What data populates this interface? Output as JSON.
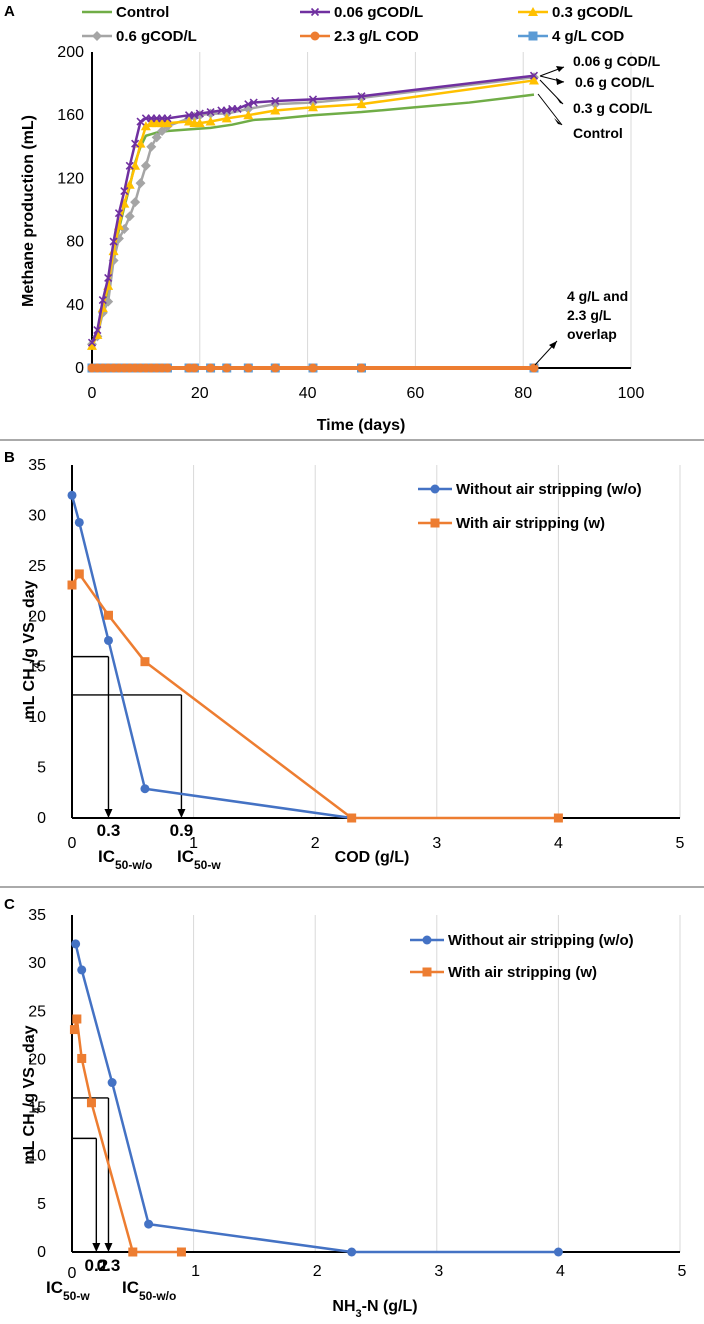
{
  "chart_data": [
    {
      "panel": "A",
      "type": "line",
      "xlabel": "Time (days)",
      "ylabel": "Methane production (mL)",
      "xlim": [
        0,
        100
      ],
      "ylim": [
        0,
        200
      ],
      "xticks": [
        0,
        20,
        40,
        60,
        80,
        100
      ],
      "yticks": [
        0,
        40,
        80,
        120,
        160,
        200
      ],
      "series": [
        {
          "name": "Control",
          "color": "#70ad47",
          "marker": "none",
          "x": [
            0,
            1,
            2,
            3,
            4,
            5,
            6,
            7,
            8,
            9,
            10,
            11,
            12,
            14,
            18,
            22,
            26,
            30,
            35,
            41,
            50,
            60,
            70,
            82
          ],
          "y": [
            15,
            22,
            37,
            50,
            68,
            88,
            102,
            115,
            130,
            140,
            147,
            148,
            149,
            150,
            151,
            152,
            154,
            157,
            158,
            160,
            162,
            165,
            168,
            173
          ]
        },
        {
          "name": "0.06 gCOD/L",
          "color": "#7030a0",
          "marker": "x",
          "x": [
            0,
            1,
            2,
            3,
            4,
            5,
            6,
            7,
            8,
            9,
            10,
            11,
            12,
            13,
            14,
            18,
            19,
            20,
            22,
            24,
            25,
            26,
            27,
            29,
            30,
            34,
            41,
            50,
            82
          ],
          "y": [
            16,
            24,
            43,
            57,
            80,
            98,
            112,
            128,
            142,
            156,
            158,
            158,
            158,
            158,
            158,
            160,
            160,
            161,
            162,
            163,
            163,
            164,
            164,
            167,
            168,
            169,
            170,
            172,
            185
          ]
        },
        {
          "name": "0.3 gCOD/L",
          "color": "#ffc000",
          "marker": "triangle",
          "x": [
            0,
            1,
            2,
            3,
            4,
            5,
            6,
            7,
            8,
            9,
            10,
            11,
            12,
            13,
            14,
            18,
            19,
            20,
            22,
            25,
            29,
            34,
            41,
            50,
            82
          ],
          "y": [
            14,
            21,
            38,
            52,
            74,
            90,
            104,
            116,
            128,
            142,
            153,
            155,
            155,
            155,
            155,
            156,
            155,
            155,
            156,
            158,
            160,
            163,
            165,
            167,
            182
          ]
        },
        {
          "name": "0.6 gCOD/L",
          "color": "#a5a5a5",
          "marker": "diamond",
          "x": [
            0,
            1,
            2,
            3,
            4,
            5,
            6,
            7,
            8,
            9,
            10,
            11,
            12,
            13,
            14,
            18,
            19,
            20,
            22,
            25,
            29,
            34,
            41,
            50,
            82
          ],
          "y": [
            15,
            20,
            35,
            42,
            68,
            82,
            88,
            96,
            105,
            117,
            128,
            140,
            146,
            150,
            153,
            158,
            159,
            160,
            161,
            161,
            164,
            167,
            168,
            171,
            184
          ]
        },
        {
          "name": "2.3 g/L COD",
          "color": "#ed7d31",
          "marker": "circle",
          "x": [
            0,
            1,
            2,
            3,
            4,
            5,
            6,
            7,
            8,
            9,
            10,
            11,
            12,
            13,
            14,
            18,
            19,
            22,
            25,
            29,
            34,
            41,
            50,
            82
          ],
          "y": [
            0,
            0,
            0,
            0,
            0,
            0,
            0,
            0,
            0,
            0,
            0,
            0,
            0,
            0,
            0,
            0,
            0,
            0,
            0,
            0,
            0,
            0,
            0,
            0
          ]
        },
        {
          "name": "4 g/L COD",
          "color": "#5b9bd5",
          "marker": "square",
          "x": [
            0,
            1,
            2,
            3,
            4,
            5,
            6,
            7,
            8,
            9,
            10,
            11,
            12,
            13,
            14,
            18,
            19,
            22,
            25,
            29,
            34,
            41,
            50,
            82
          ],
          "y": [
            0,
            0,
            0,
            0,
            0,
            0,
            0,
            0,
            0,
            0,
            0,
            0,
            0,
            0,
            0,
            0,
            0,
            0,
            0,
            0,
            0,
            0,
            0,
            0
          ]
        }
      ],
      "annotations": [
        "0.06 g COD/L",
        "0.6 g COD/L",
        "0.3 g COD/L",
        "Control",
        "4 g/L and",
        "2.3 g/L",
        "overlap"
      ]
    },
    {
      "panel": "B",
      "type": "line",
      "xlabel": "COD (g/L)",
      "ylabel": "mL CH4/g VS - day",
      "xlim": [
        0,
        5
      ],
      "ylim": [
        0,
        35
      ],
      "xticks": [
        0,
        1,
        2,
        3,
        4,
        5
      ],
      "yticks": [
        0,
        5,
        10,
        15,
        20,
        25,
        30,
        35
      ],
      "series": [
        {
          "name": "Without air stripping (w/o)",
          "color": "#4472c4",
          "marker": "circle",
          "x": [
            0,
            0.06,
            0.3,
            0.6,
            2.3
          ],
          "y": [
            32,
            29.3,
            17.6,
            2.9,
            0
          ]
        },
        {
          "name": "With air stripping (w)",
          "color": "#ed7d31",
          "marker": "square",
          "x": [
            0,
            0.06,
            0.3,
            0.6,
            2.3,
            4
          ],
          "y": [
            23.1,
            24.2,
            20.1,
            15.5,
            0,
            0
          ]
        }
      ],
      "ic50": [
        {
          "y": 16,
          "x": 0.3,
          "value_label": "0.3",
          "label": "IC",
          "sub": "50-w/o"
        },
        {
          "y": 12.2,
          "x": 0.9,
          "value_label": "0.9",
          "label": "IC",
          "sub": "50-w"
        }
      ]
    },
    {
      "panel": "C",
      "type": "line",
      "xlabel": "NH3-N (g/L)",
      "ylabel": "mL CH4/g VS - day",
      "xlim": [
        0,
        5
      ],
      "ylim": [
        0,
        35
      ],
      "xticks": [
        1,
        2,
        3,
        4,
        5
      ],
      "yticks": [
        0,
        5,
        10,
        15,
        20,
        25,
        30,
        35
      ],
      "series": [
        {
          "name": "Without air stripping (w/o)",
          "color": "#4472c4",
          "marker": "circle",
          "x": [
            0.03,
            0.08,
            0.33,
            0.63,
            2.3,
            4.0
          ],
          "y": [
            32,
            29.3,
            17.6,
            2.9,
            0,
            0
          ]
        },
        {
          "name": "With air stripping (w)",
          "color": "#ed7d31",
          "marker": "square",
          "x": [
            0.02,
            0.04,
            0.08,
            0.16,
            0.5,
            0.9
          ],
          "y": [
            23.1,
            24.2,
            20.1,
            15.5,
            0,
            0
          ]
        }
      ],
      "ic50": [
        {
          "y": 11.8,
          "x": 0.2,
          "value_label": "0.2",
          "label": "IC",
          "sub": "50-w"
        },
        {
          "y": 16,
          "x": 0.3,
          "value_label": "0.3",
          "label": "IC",
          "sub": "50-w/o"
        }
      ]
    }
  ],
  "panel_labels": [
    "A",
    "B",
    "C"
  ],
  "labels": {
    "a_xlabel": "Time (days)",
    "a_ylabel": "Methane production (mL)",
    "b_xlabel": "COD (g/L)",
    "c_xlabel_pre": "NH",
    "c_xlabel_sub": "3",
    "c_xlabel_post": "-N (g/L)",
    "ch4_pre": "mL CH",
    "ch4_sub": "4",
    "ch4_post": "/g VS - day",
    "c_tick_zero": "0",
    "annot_0_06": "0.06 g COD/L",
    "annot_0_6": "0.6 g COD/L",
    "annot_0_3": "0.3 g COD/L",
    "annot_control": "Control",
    "annot_overlap_1": "4 g/L and",
    "annot_overlap_2": "2.3 g/L",
    "annot_overlap_3": "overlap"
  }
}
